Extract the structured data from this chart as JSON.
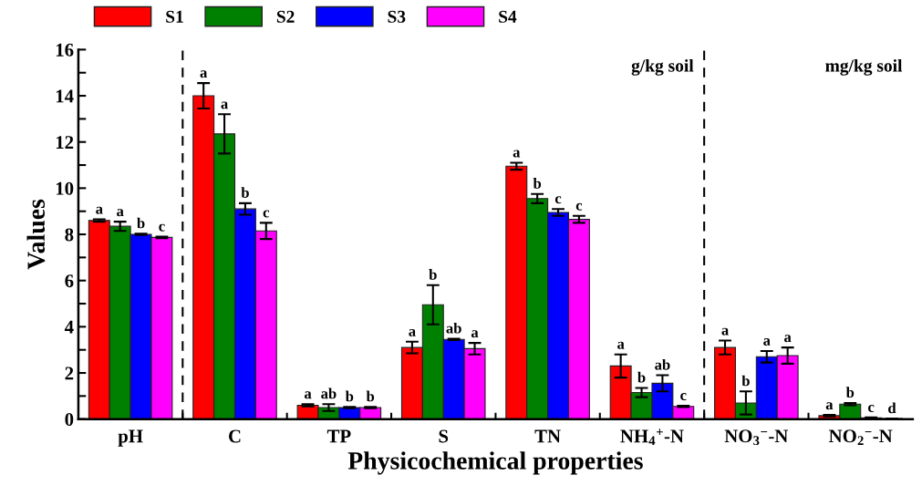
{
  "chart_data": {
    "type": "bar",
    "xlabel": "Physicochemical properties",
    "ylabel": "Values",
    "categories": [
      "pH",
      "C",
      "TP",
      "S",
      "TN",
      "NH$_{4}$$^{+}$-N",
      "NO$_{3}$$^{−}$-N",
      "NO$_{2}$$^{−}$-N"
    ],
    "series": [
      {
        "name": "S1",
        "color": "#ff0000",
        "values": [
          8.6,
          14.0,
          0.6,
          3.1,
          10.95,
          2.3,
          3.1,
          0.15
        ],
        "errors": [
          0.05,
          0.55,
          0.05,
          0.25,
          0.15,
          0.5,
          0.3,
          0.03
        ],
        "value_labels": [
          "a",
          "a",
          "a",
          "a",
          "a",
          "a",
          "a",
          "a"
        ]
      },
      {
        "name": "S2",
        "color": "#008000",
        "values": [
          8.35,
          12.35,
          0.5,
          4.95,
          9.55,
          1.15,
          0.7,
          0.65
        ],
        "errors": [
          0.2,
          0.85,
          0.15,
          0.85,
          0.2,
          0.2,
          0.5,
          0.05
        ],
        "value_labels": [
          "a",
          "a",
          "ab",
          "b",
          "b",
          "b",
          "b",
          "b"
        ]
      },
      {
        "name": "S3",
        "color": "#0000ff",
        "values": [
          8.0,
          9.1,
          0.5,
          3.45,
          8.95,
          1.55,
          2.7,
          0.05
        ],
        "errors": [
          0.03,
          0.25,
          0.03,
          0.03,
          0.15,
          0.35,
          0.25,
          0.02
        ],
        "value_labels": [
          "b",
          "b",
          "b",
          "ab",
          "c",
          "ab",
          "a",
          "c"
        ]
      },
      {
        "name": "S4",
        "color": "#ff00ff",
        "values": [
          7.87,
          8.15,
          0.5,
          3.05,
          8.65,
          0.55,
          2.75,
          0.02
        ],
        "errors": [
          0.03,
          0.35,
          0.03,
          0.25,
          0.15,
          0.03,
          0.35,
          0.0
        ],
        "value_labels": [
          "c",
          "c",
          "b",
          "a",
          "c",
          "c",
          "a",
          "d"
        ]
      }
    ],
    "ylim": [
      0,
      16
    ],
    "yticks": [
      0,
      {
        "value": 1,
        "label": null
      },
      2,
      {
        "value": 3,
        "label": null
      },
      4,
      {
        "value": 5,
        "label": null
      },
      6,
      {
        "value": 7,
        "label": null
      },
      8,
      {
        "value": 9,
        "label": null
      },
      10,
      {
        "value": 11,
        "label": null
      },
      12,
      {
        "value": 13,
        "label": null
      },
      14,
      {
        "value": 15,
        "label": null
      },
      16
    ],
    "annotations": [
      "g/kg soil",
      "mg/kg soil"
    ],
    "legend": "top",
    "grid": false
  }
}
